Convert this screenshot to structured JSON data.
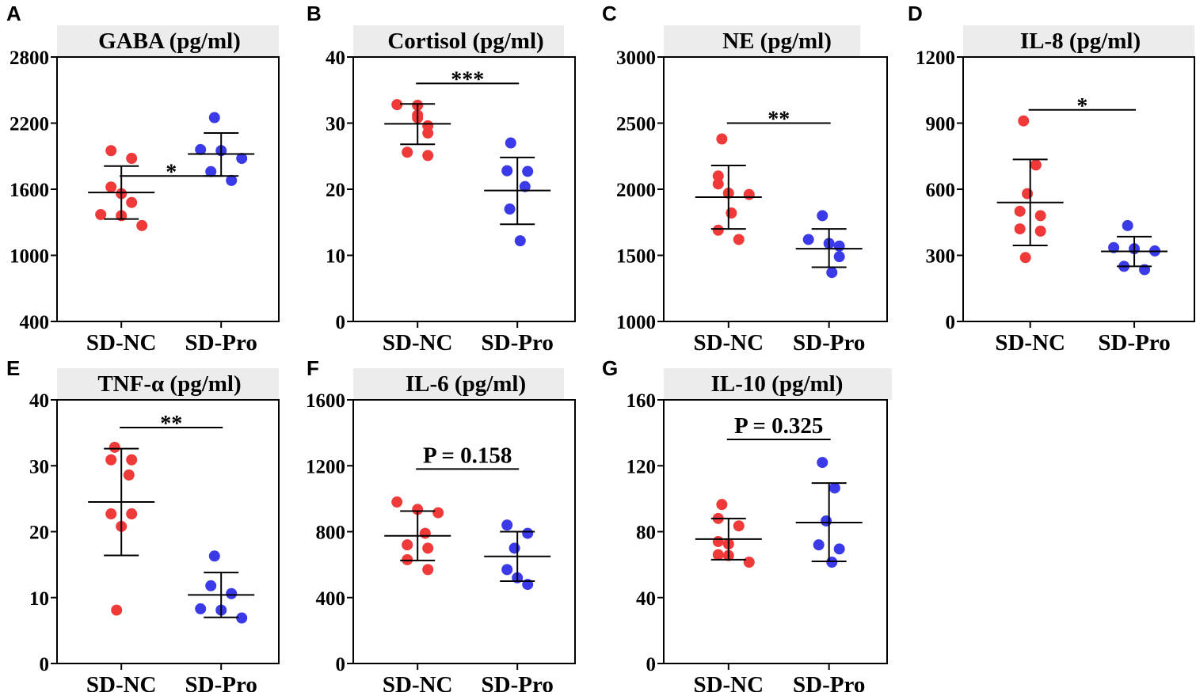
{
  "chart_data": [
    {
      "letter": "A",
      "type": "scatter",
      "title": "GABA (pg/ml)",
      "ylim": [
        400,
        2800
      ],
      "yticks": [
        400,
        1000,
        1600,
        2200,
        2800
      ],
      "categories": [
        "SD-NC",
        "SD-Pro"
      ],
      "series": [
        {
          "name": "SD-NC",
          "color": "#f03a3a",
          "mean": 1570,
          "sd_low": 1330,
          "sd_high": 1810,
          "points": [
            1950,
            1880,
            1620,
            1560,
            1480,
            1370,
            1360,
            1270
          ]
        },
        {
          "name": "SD-Pro",
          "color": "#3a3ae8",
          "mean": 1920,
          "sd_low": 1720,
          "sd_high": 2110,
          "points": [
            2250,
            1960,
            1950,
            1880,
            1760,
            1680
          ]
        }
      ],
      "significance": {
        "label": "*",
        "y": 1720
      }
    },
    {
      "letter": "B",
      "type": "scatter",
      "title": "Cortisol (pg/ml)",
      "ylim": [
        0,
        40
      ],
      "yticks": [
        0,
        10,
        20,
        30,
        40
      ],
      "categories": [
        "SD-NC",
        "SD-Pro"
      ],
      "series": [
        {
          "name": "SD-NC",
          "color": "#f03a3a",
          "mean": 29.9,
          "sd_low": 26.8,
          "sd_high": 32.9,
          "points": [
            32.8,
            32.7,
            31.2,
            30.8,
            29.6,
            28.5,
            25.6,
            25.1
          ]
        },
        {
          "name": "SD-Pro",
          "color": "#3a3ae8",
          "mean": 19.8,
          "sd_low": 14.7,
          "sd_high": 24.8,
          "points": [
            27.0,
            22.8,
            22.7,
            20.4,
            17.0,
            12.2
          ]
        }
      ],
      "significance": {
        "label": "***",
        "y": 36.0
      }
    },
    {
      "letter": "C",
      "type": "scatter",
      "title": "NE (pg/ml)",
      "ylim": [
        1000,
        3000
      ],
      "yticks": [
        1000,
        1500,
        2000,
        2500,
        3000
      ],
      "categories": [
        "SD-NC",
        "SD-Pro"
      ],
      "series": [
        {
          "name": "SD-NC",
          "color": "#f03a3a",
          "mean": 1940,
          "sd_low": 1700,
          "sd_high": 2180,
          "points": [
            2380,
            2100,
            2040,
            1970,
            1960,
            1820,
            1690,
            1620
          ]
        },
        {
          "name": "SD-Pro",
          "color": "#3a3ae8",
          "mean": 1550,
          "sd_low": 1410,
          "sd_high": 1700,
          "points": [
            1800,
            1620,
            1590,
            1570,
            1490,
            1370
          ]
        }
      ],
      "significance": {
        "label": "**",
        "y": 2500
      }
    },
    {
      "letter": "D",
      "type": "scatter",
      "title": "IL-8 (pg/ml)",
      "ylim": [
        0,
        1200
      ],
      "yticks": [
        0,
        300,
        600,
        900,
        1200
      ],
      "categories": [
        "SD-NC",
        "SD-Pro"
      ],
      "series": [
        {
          "name": "SD-NC",
          "color": "#f03a3a",
          "mean": 540,
          "sd_low": 345,
          "sd_high": 735,
          "points": [
            910,
            710,
            580,
            500,
            480,
            420,
            410,
            290
          ]
        },
        {
          "name": "SD-Pro",
          "color": "#3a3ae8",
          "mean": 318,
          "sd_low": 250,
          "sd_high": 385,
          "points": [
            435,
            335,
            330,
            320,
            250,
            235
          ]
        }
      ],
      "significance": {
        "label": "*",
        "y": 960
      }
    },
    {
      "letter": "E",
      "type": "scatter",
      "title": "TNF-α (pg/ml)",
      "ylim": [
        0,
        40
      ],
      "yticks": [
        0,
        10,
        20,
        30,
        40
      ],
      "categories": [
        "SD-NC",
        "SD-Pro"
      ],
      "series": [
        {
          "name": "SD-NC",
          "color": "#f03a3a",
          "mean": 24.5,
          "sd_low": 16.4,
          "sd_high": 32.6,
          "points": [
            32.8,
            30.9,
            30.9,
            28.6,
            22.7,
            22.7,
            20.8,
            8.1
          ]
        },
        {
          "name": "SD-Pro",
          "color": "#3a3ae8",
          "mean": 10.4,
          "sd_low": 7.0,
          "sd_high": 13.8,
          "points": [
            16.3,
            11.8,
            10.6,
            8.3,
            8.1,
            6.9
          ]
        }
      ],
      "significance": {
        "label": "**",
        "y": 35.8
      }
    },
    {
      "letter": "F",
      "type": "scatter",
      "title": "IL-6 (pg/ml)",
      "ylim": [
        0,
        1600
      ],
      "yticks": [
        0,
        400,
        800,
        1200,
        1600
      ],
      "categories": [
        "SD-NC",
        "SD-Pro"
      ],
      "series": [
        {
          "name": "SD-NC",
          "color": "#f03a3a",
          "mean": 775,
          "sd_low": 625,
          "sd_high": 925,
          "points": [
            980,
            935,
            915,
            790,
            720,
            700,
            630,
            570
          ]
        },
        {
          "name": "SD-Pro",
          "color": "#3a3ae8",
          "mean": 650,
          "sd_low": 500,
          "sd_high": 800,
          "points": [
            840,
            790,
            700,
            570,
            520,
            480
          ]
        }
      ],
      "significance": {
        "label": "P = 0.158",
        "y": 1180
      }
    },
    {
      "letter": "G",
      "type": "scatter",
      "title": "IL-10 (pg/ml)",
      "ylim": [
        0,
        160
      ],
      "yticks": [
        0,
        40,
        80,
        120,
        160
      ],
      "categories": [
        "SD-NC",
        "SD-Pro"
      ],
      "series": [
        {
          "name": "SD-NC",
          "color": "#f03a3a",
          "mean": 75.5,
          "sd_low": 63.0,
          "sd_high": 88.0,
          "points": [
            96.5,
            88.0,
            83.5,
            74.0,
            72.5,
            66.0,
            65.5,
            61.5
          ]
        },
        {
          "name": "SD-Pro",
          "color": "#3a3ae8",
          "mean": 85.5,
          "sd_low": 62.0,
          "sd_high": 109.5,
          "points": [
            122.0,
            106.5,
            86.5,
            72.0,
            69.5,
            61.5
          ]
        }
      ],
      "significance": {
        "label": "P = 0.325",
        "y": 136
      }
    }
  ]
}
